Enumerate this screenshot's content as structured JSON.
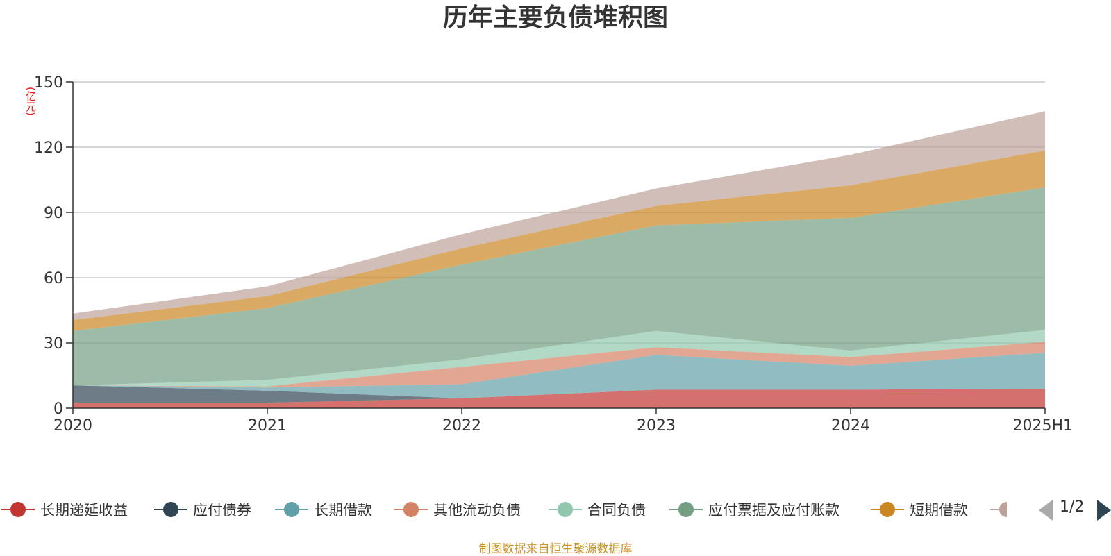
{
  "title": "历年主要负债堆积图",
  "unit_label": "(亿元)",
  "source": "制图数据来自恒生聚源数据库",
  "legend_page": "1/2",
  "legend": [
    {
      "name": "长期递延收益",
      "color": "#c23531"
    },
    {
      "name": "应付债券",
      "color": "#2f4554"
    },
    {
      "name": "长期借款",
      "color": "#61a0a8"
    },
    {
      "name": "其他流动负债",
      "color": "#d48265"
    },
    {
      "name": "合同负债",
      "color": "#91c7ae"
    },
    {
      "name": "应付票据及应付账款",
      "color": "#749f83"
    },
    {
      "name": "短期借款",
      "color": "#ca8622"
    }
  ],
  "chart_data": {
    "type": "area",
    "stacked": true,
    "title": "历年主要负债堆积图",
    "ylabel": "(亿元)",
    "ylim": [
      0,
      150
    ],
    "yticks": [
      0,
      30,
      60,
      90,
      120,
      150
    ],
    "grid": true,
    "legend_position": "bottom",
    "x": [
      "2020",
      "2021",
      "2022",
      "2023",
      "2024",
      "2025H1"
    ],
    "series": [
      {
        "name": "长期递延收益",
        "color": "#c23531",
        "values": [
          2.5,
          2.5,
          4.5,
          8.5,
          8.5,
          9
        ]
      },
      {
        "name": "应付债券",
        "color": "#2f4554",
        "values": [
          8,
          5.5,
          0,
          0,
          0,
          0
        ]
      },
      {
        "name": "长期借款",
        "color": "#61a0a8",
        "values": [
          0,
          1.5,
          6.5,
          16,
          11,
          16.5
        ]
      },
      {
        "name": "其他流动负债",
        "color": "#d48265",
        "values": [
          0,
          0.5,
          8,
          3.5,
          4,
          5
        ]
      },
      {
        "name": "合同负债",
        "color": "#91c7ae",
        "values": [
          0,
          3,
          3.5,
          7.5,
          3,
          5.5
        ]
      },
      {
        "name": "应付票据及应付账款",
        "color": "#749f83",
        "values": [
          25,
          33,
          43.5,
          48.5,
          61,
          65.5
        ]
      },
      {
        "name": "短期借款",
        "color": "#ca8622",
        "values": [
          5,
          5.5,
          7.5,
          9,
          15,
          17
        ]
      },
      {
        "color": "#bda29a",
        "values": [
          3,
          4.5,
          6.5,
          8,
          14,
          18
        ]
      }
    ]
  }
}
